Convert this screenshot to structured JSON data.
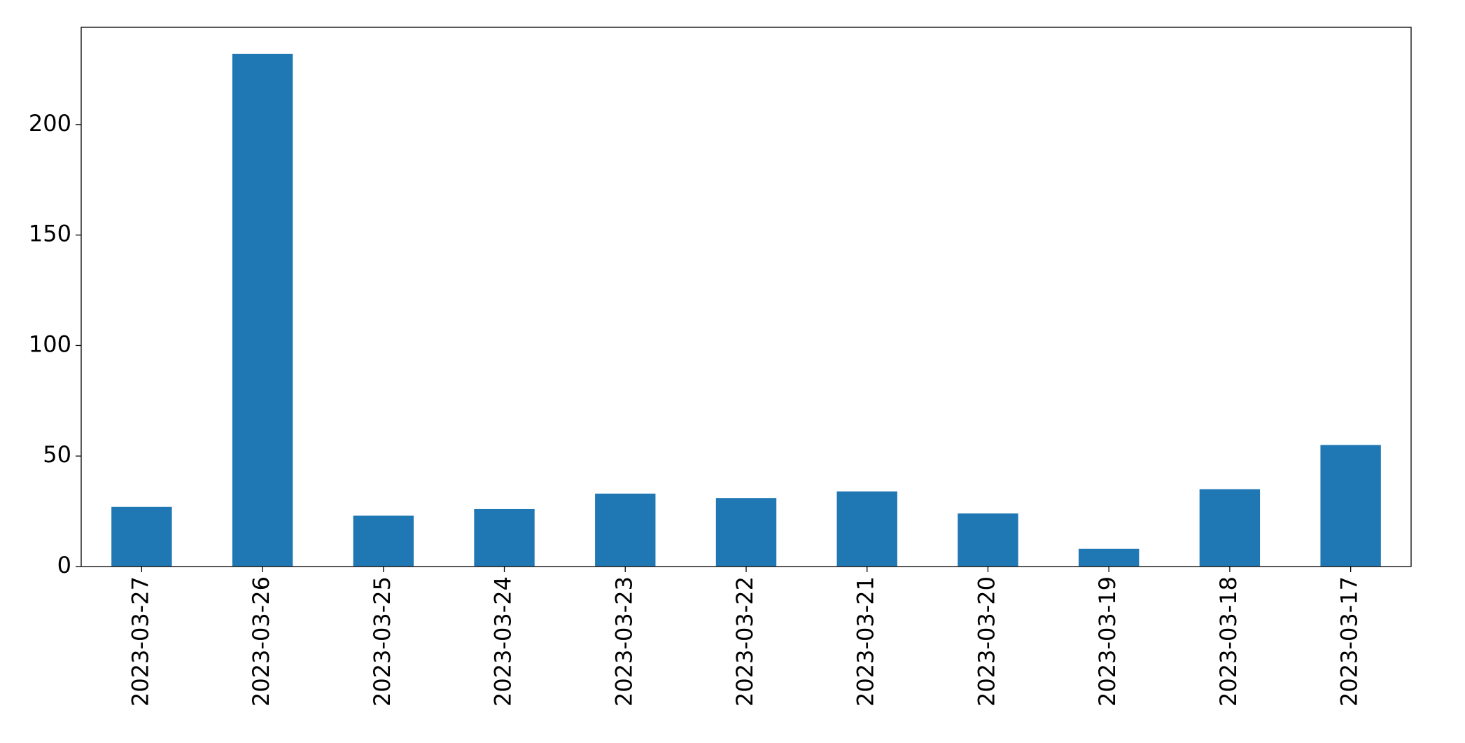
{
  "chart_data": {
    "type": "bar",
    "categories": [
      "2023-03-27",
      "2023-03-26",
      "2023-03-25",
      "2023-03-24",
      "2023-03-23",
      "2023-03-22",
      "2023-03-21",
      "2023-03-20",
      "2023-03-19",
      "2023-03-18",
      "2023-03-17"
    ],
    "values": [
      27,
      232,
      23,
      26,
      33,
      31,
      34,
      24,
      8,
      35,
      55
    ],
    "color": "#1f77b4",
    "ylim": [
      0,
      244
    ],
    "yticks": [
      0,
      50,
      100,
      150,
      200
    ],
    "grid": false
  }
}
